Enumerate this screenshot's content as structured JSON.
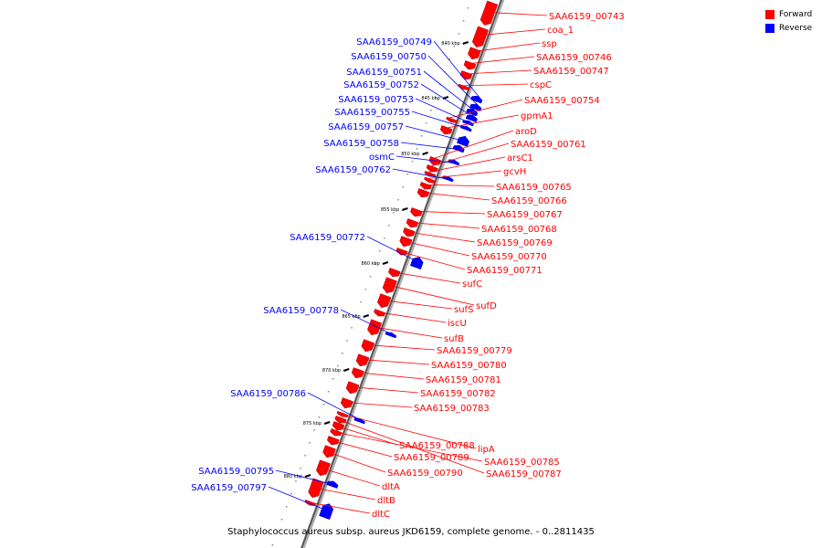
{
  "legend": {
    "forward_label": "Forward",
    "reverse_label": "Reverse",
    "forward_color": "#ff0000",
    "reverse_color": "#0000ff"
  },
  "caption": "Staphylococcus aureus subsp. aureus JKD6159, complete genome. - 0..2811435",
  "ticks": [
    "840 kbp",
    "845 kbp",
    "850 kbp",
    "855 kbp",
    "860 kbp",
    "865 kbp",
    "870 kbp",
    "875 kbp",
    "880 kbp"
  ],
  "genes": [
    {
      "name": "SAA6159_00743",
      "strand": "forward"
    },
    {
      "name": "coa_1",
      "strand": "forward"
    },
    {
      "name": "ssp",
      "strand": "forward"
    },
    {
      "name": "SAA6159_00746",
      "strand": "forward"
    },
    {
      "name": "SAA6159_00747",
      "strand": "forward"
    },
    {
      "name": "cspC",
      "strand": "forward"
    },
    {
      "name": "SAA6159_00754",
      "strand": "forward"
    },
    {
      "name": "gpmA1",
      "strand": "forward"
    },
    {
      "name": "aroD",
      "strand": "forward"
    },
    {
      "name": "SAA6159_00761",
      "strand": "forward"
    },
    {
      "name": "arsC1",
      "strand": "forward"
    },
    {
      "name": "gcvH",
      "strand": "forward"
    },
    {
      "name": "SAA6159_00765",
      "strand": "forward"
    },
    {
      "name": "SAA6159_00766",
      "strand": "forward"
    },
    {
      "name": "SAA6159_00767",
      "strand": "forward"
    },
    {
      "name": "SAA6159_00768",
      "strand": "forward"
    },
    {
      "name": "SAA6159_00769",
      "strand": "forward"
    },
    {
      "name": "SAA6159_00770",
      "strand": "forward"
    },
    {
      "name": "SAA6159_00771",
      "strand": "forward"
    },
    {
      "name": "sufC",
      "strand": "forward"
    },
    {
      "name": "sufD",
      "strand": "forward"
    },
    {
      "name": "sufS",
      "strand": "forward"
    },
    {
      "name": "iscU",
      "strand": "forward"
    },
    {
      "name": "sufB",
      "strand": "forward"
    },
    {
      "name": "SAA6159_00779",
      "strand": "forward"
    },
    {
      "name": "SAA6159_00780",
      "strand": "forward"
    },
    {
      "name": "SAA6159_00781",
      "strand": "forward"
    },
    {
      "name": "SAA6159_00782",
      "strand": "forward"
    },
    {
      "name": "SAA6159_00783",
      "strand": "forward"
    },
    {
      "name": "lipA",
      "strand": "forward"
    },
    {
      "name": "SAA6159_00788",
      "strand": "forward"
    },
    {
      "name": "SAA6159_00785",
      "strand": "forward"
    },
    {
      "name": "SAA6159_00789",
      "strand": "forward"
    },
    {
      "name": "SAA6159_00787",
      "strand": "forward"
    },
    {
      "name": "SAA6159_00790",
      "strand": "forward"
    },
    {
      "name": "dltA",
      "strand": "forward"
    },
    {
      "name": "dltB",
      "strand": "forward"
    },
    {
      "name": "dltC",
      "strand": "forward"
    },
    {
      "name": "SAA6159_00749",
      "strand": "reverse"
    },
    {
      "name": "SAA6159_00750",
      "strand": "reverse"
    },
    {
      "name": "SAA6159_00751",
      "strand": "reverse"
    },
    {
      "name": "SAA6159_00752",
      "strand": "reverse"
    },
    {
      "name": "SAA6159_00753",
      "strand": "reverse"
    },
    {
      "name": "SAA6159_00755",
      "strand": "reverse"
    },
    {
      "name": "SAA6159_00757",
      "strand": "reverse"
    },
    {
      "name": "SAA6159_00758",
      "strand": "reverse"
    },
    {
      "name": "osmC",
      "strand": "reverse"
    },
    {
      "name": "SAA6159_00762",
      "strand": "reverse"
    },
    {
      "name": "SAA6159_00772",
      "strand": "reverse"
    },
    {
      "name": "SAA6159_00778",
      "strand": "reverse"
    },
    {
      "name": "SAA6159_00786",
      "strand": "reverse"
    },
    {
      "name": "SAA6159_00795",
      "strand": "reverse"
    },
    {
      "name": "SAA6159_00797",
      "strand": "reverse"
    }
  ]
}
